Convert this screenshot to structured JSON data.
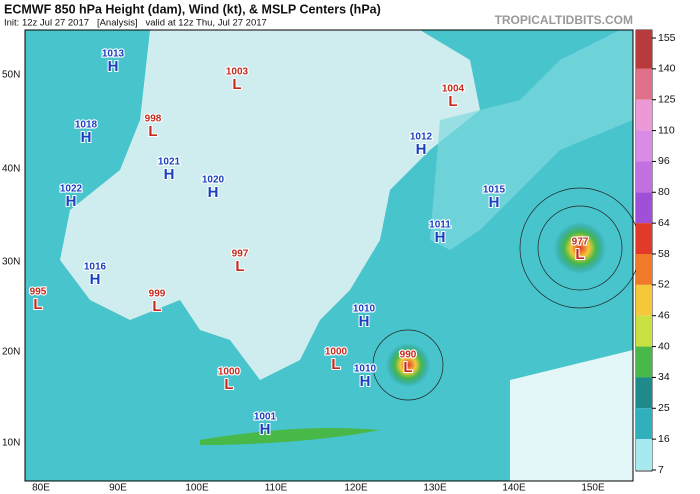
{
  "header": {
    "title": "ECMWF 850 hPa Height (dam), Wind (kt), & MSLP Centers (hPa)",
    "subtitle": "Init: 12z Jul 27 2017   [Analysis]   valid at 12z Thu, Jul 27 2017",
    "brand": "TROPICALTIDBITS.COM"
  },
  "latitude_labels": [
    "50N",
    "40N",
    "30N",
    "20N",
    "10N"
  ],
  "longitude_labels": [
    "80E",
    "90E",
    "100E",
    "110E",
    "120E",
    "130E",
    "140E",
    "150E"
  ],
  "colorbar": {
    "ticks": [
      155,
      140,
      125,
      110,
      96,
      80,
      64,
      58,
      52,
      46,
      40,
      34,
      25,
      16,
      7
    ],
    "colors": [
      "#b83a3a",
      "#e0708a",
      "#ec9ad6",
      "#d88ce6",
      "#c070e0",
      "#a050d8",
      "#e23a28",
      "#f07a2a",
      "#f4c83a",
      "#c8e040",
      "#48b848",
      "#1e8a8a",
      "#2fb0bc",
      "#a6eaf0"
    ]
  },
  "centers": [
    {
      "kind": "H",
      "value": 1013
    },
    {
      "kind": "H",
      "value": 1018
    },
    {
      "kind": "H",
      "value": 1021
    },
    {
      "kind": "H",
      "value": 1020
    },
    {
      "kind": "H",
      "value": 1022
    },
    {
      "kind": "H",
      "value": 1016
    },
    {
      "kind": "L",
      "value": 1003
    },
    {
      "kind": "L",
      "value": 998
    },
    {
      "kind": "L",
      "value": 997
    },
    {
      "kind": "L",
      "value": 995
    },
    {
      "kind": "L",
      "value": 999
    },
    {
      "kind": "L",
      "value": 1004
    },
    {
      "kind": "H",
      "value": 1012
    },
    {
      "kind": "H",
      "value": 1015
    },
    {
      "kind": "H",
      "value": 1011
    },
    {
      "kind": "H",
      "value": 1010
    },
    {
      "kind": "L",
      "value": 1000
    },
    {
      "kind": "L",
      "value": 990
    },
    {
      "kind": "H",
      "value": 1010
    },
    {
      "kind": "L",
      "value": 1000
    },
    {
      "kind": "H",
      "value": 1001
    },
    {
      "kind": "L",
      "value": 977
    }
  ]
}
